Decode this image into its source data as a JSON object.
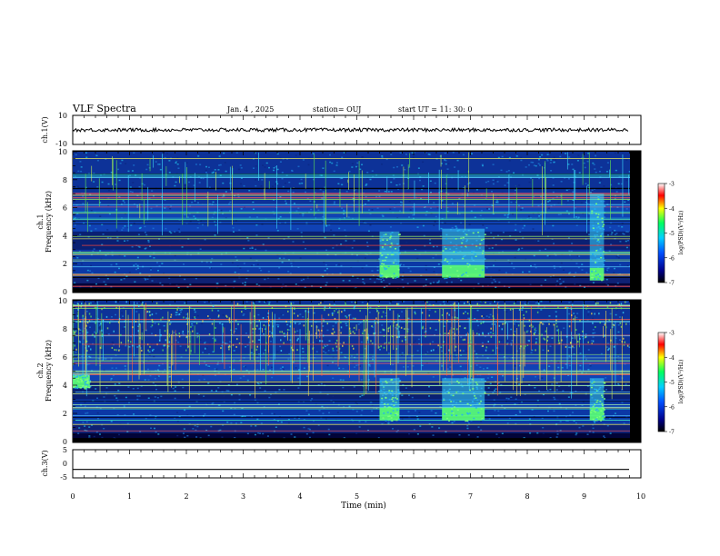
{
  "header": {
    "title": "VLF Spectra",
    "date": "Jan. 4 , 2025",
    "station": "station= OUJ",
    "start": "start UT =  11: 30: 0"
  },
  "chart_data": [
    {
      "type": "line",
      "id": "ch1-waveform",
      "ylabel": "ch.1(V)",
      "ylim": [
        -10,
        10
      ],
      "yticks": [
        "10",
        "-10"
      ],
      "baseline_value": 0,
      "amplitude_approx": 1.2
    },
    {
      "type": "heatmap",
      "id": "ch1-spectrogram",
      "ylabel": "ch.1 Frequency (kHz)",
      "ylim": [
        0,
        10
      ],
      "yticks": [
        "0",
        "2",
        "4",
        "6",
        "8",
        "10"
      ],
      "colorbar": {
        "label": "log(PSD)(V²/Hz)",
        "ticks": [
          "-3",
          "-4",
          "-5",
          "-6",
          "-7"
        ],
        "range": [
          -7,
          -3
        ]
      },
      "bursts": [
        {
          "t_start": 5.4,
          "t_end": 5.75,
          "f_low": 1.0,
          "f_high": 4.3
        },
        {
          "t_start": 6.5,
          "t_end": 7.25,
          "f_low": 1.0,
          "f_high": 4.5
        },
        {
          "t_start": 9.1,
          "t_end": 9.35,
          "f_low": 0.8,
          "f_high": 7.0
        }
      ]
    },
    {
      "type": "heatmap",
      "id": "ch2-spectrogram",
      "ylabel": "ch.2 Frequency (kHz)",
      "ylim": [
        0,
        10
      ],
      "yticks": [
        "0",
        "2",
        "4",
        "6",
        "8",
        "10"
      ],
      "colorbar": {
        "label": "log(PSD)(V²/Hz)",
        "ticks": [
          "-3",
          "-4",
          "-5",
          "-6",
          "-7"
        ],
        "range": [
          -7,
          -3
        ]
      },
      "bursts": [
        {
          "t_start": 0.0,
          "t_end": 0.3,
          "f_low": 3.8,
          "f_high": 4.8
        },
        {
          "t_start": 5.4,
          "t_end": 5.75,
          "f_low": 1.5,
          "f_high": 4.5
        },
        {
          "t_start": 6.5,
          "t_end": 7.25,
          "f_low": 1.5,
          "f_high": 4.5
        },
        {
          "t_start": 9.1,
          "t_end": 9.35,
          "f_low": 1.5,
          "f_high": 4.5
        }
      ]
    },
    {
      "type": "line",
      "id": "ch3-trace",
      "ylabel": "ch.3(V)",
      "ylim": [
        -5,
        5
      ],
      "yticks": [
        "5",
        "0",
        "-5"
      ],
      "value": -2
    }
  ],
  "xaxis": {
    "label": "Time (min)",
    "range": [
      0,
      10
    ],
    "ticks": [
      "0",
      "1",
      "2",
      "3",
      "4",
      "5",
      "6",
      "7",
      "8",
      "9",
      "10"
    ]
  }
}
